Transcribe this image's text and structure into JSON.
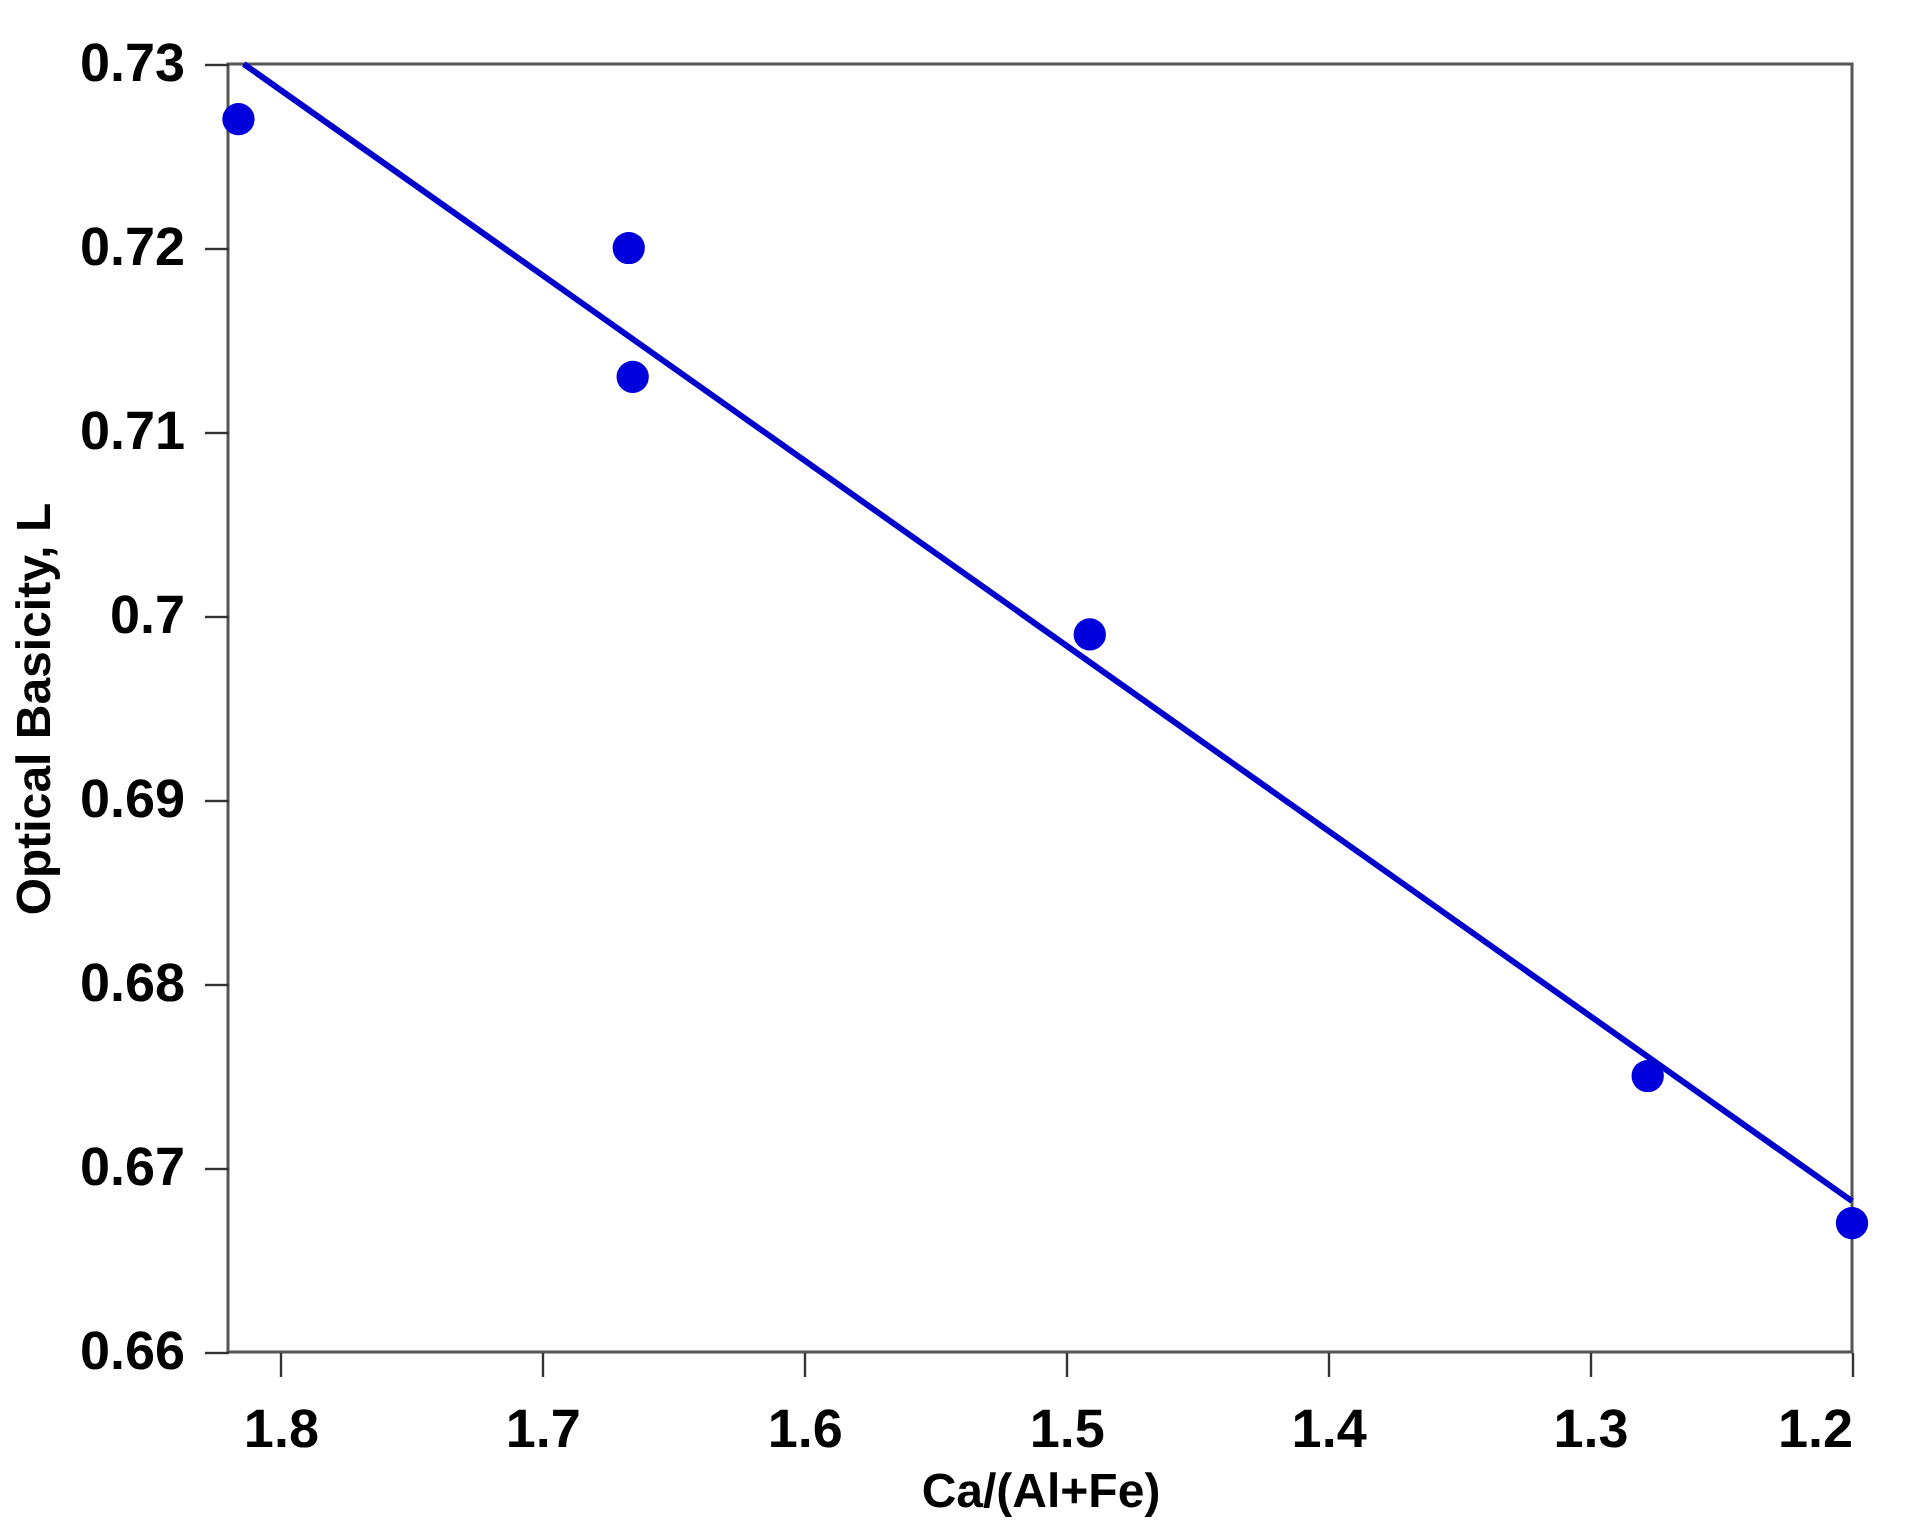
{
  "chart_data": {
    "type": "scatter",
    "xlabel": "Ca/(Al+Fe)",
    "ylabel": "Optical Basicity, L",
    "xlim": [
      1.82,
      1.2
    ],
    "xticks": [
      1.8,
      1.7,
      1.6,
      1.5,
      1.4,
      1.3,
      1.2
    ],
    "ylim": [
      0.66,
      0.73
    ],
    "yticks": [
      0.66,
      0.67,
      0.68,
      0.69,
      0.7,
      0.71,
      0.72,
      0.73
    ],
    "grid": false,
    "marker": "circle",
    "series": [
      {
        "color": "#0000dd",
        "x": [
          1.816,
          1.667,
          1.6655,
          1.491,
          1.278,
          1.2
        ],
        "values": [
          0.727,
          0.72,
          0.713,
          0.699,
          0.675,
          0.667
        ]
      },
      {
        "type": "line",
        "color": "#0000cc",
        "line_style": "solid",
        "marker": "none",
        "x": [
          1.814,
          1.2
        ],
        "values": [
          0.73,
          0.6682
        ]
      }
    ]
  }
}
